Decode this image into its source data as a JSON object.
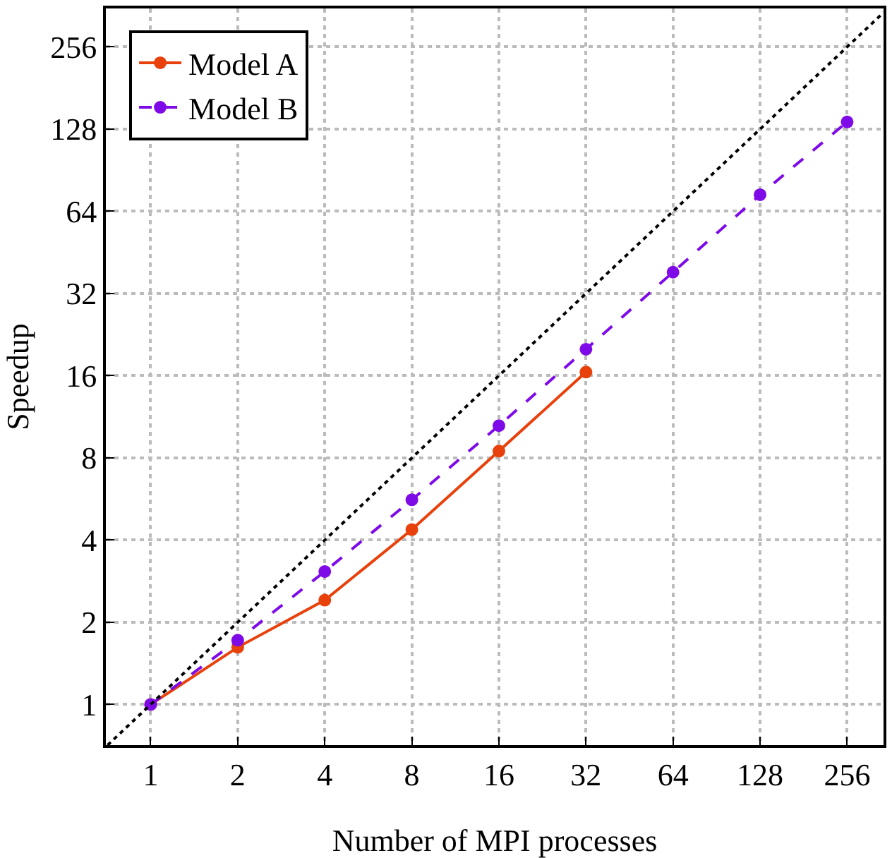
{
  "chart_data": {
    "type": "line",
    "xlabel": "Number of MPI processes",
    "ylabel": "Speedup",
    "log": "xy",
    "grid": true,
    "legend": "top left",
    "marker": "circle",
    "xlim": [
      0.7,
      342
    ],
    "ylim": [
      0.71,
      354
    ],
    "xticks": [
      1,
      2,
      4,
      8,
      16,
      32,
      64,
      128,
      256
    ],
    "yticks": [
      1,
      2,
      4,
      8,
      16,
      32,
      64,
      128,
      256
    ],
    "series": [
      {
        "name": "Model A",
        "color": "#e8410c",
        "line_style": "solid",
        "x": [
          1,
          2,
          4,
          8,
          16,
          32
        ],
        "values": [
          1,
          1.62,
          2.41,
          4.37,
          8.47,
          16.5
        ]
      },
      {
        "name": "Model B",
        "color": "#7f0ae8",
        "line_style": "dashed",
        "x": [
          1,
          2,
          4,
          8,
          16,
          32,
          64,
          128,
          256
        ],
        "values": [
          1,
          1.72,
          3.07,
          5.62,
          10.5,
          20,
          38.3,
          73.6,
          136
        ]
      },
      {
        "color": "#000000",
        "line_style": "dotted",
        "marker": "none",
        "x": [
          0.71,
          342
        ],
        "values": [
          0.71,
          342
        ]
      }
    ]
  }
}
